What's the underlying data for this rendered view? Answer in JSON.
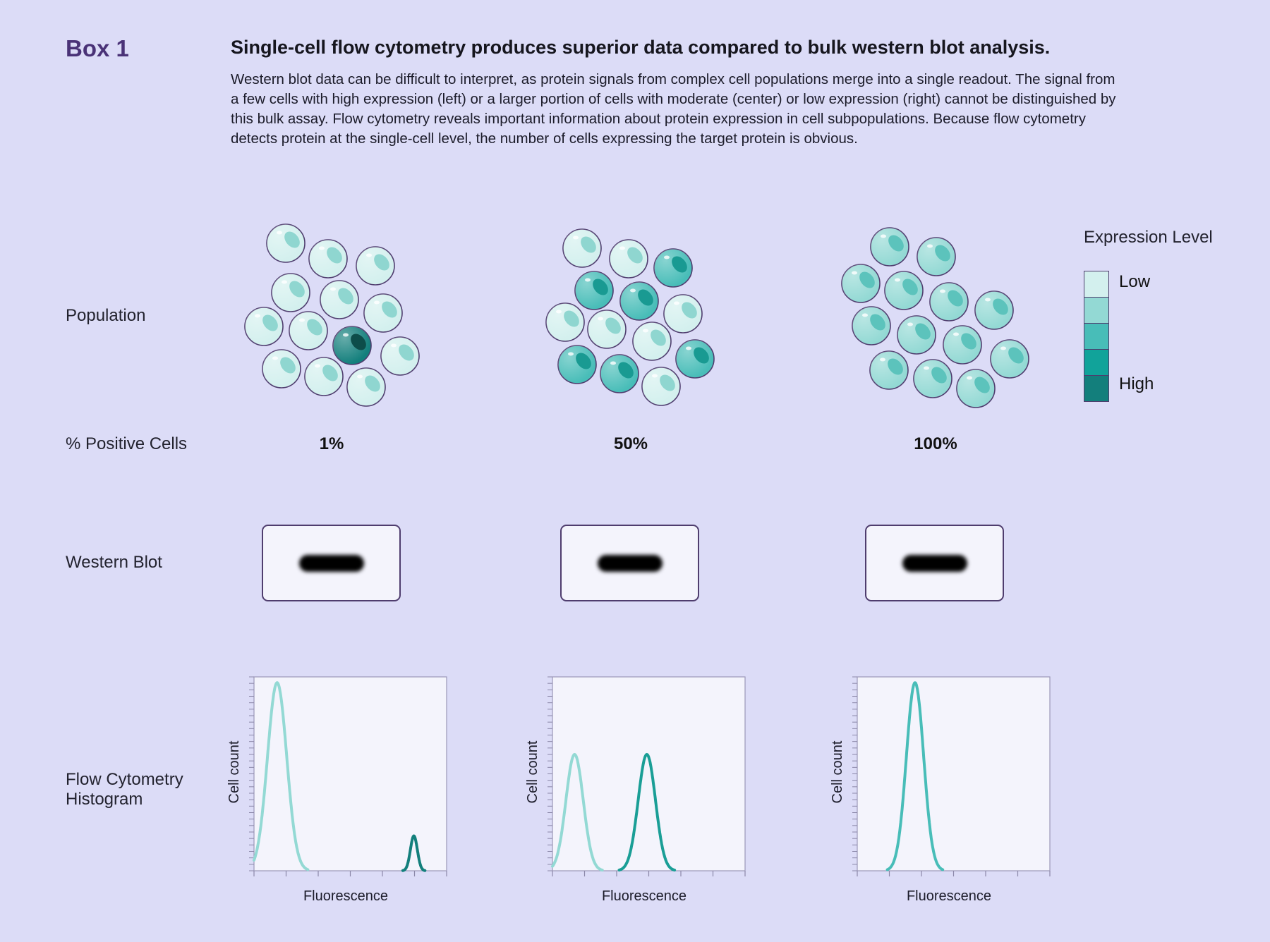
{
  "box_label": "Box 1",
  "headline": "Single-cell flow cytometry produces superior data compared to bulk western blot analysis.",
  "intro": "Western blot data can be difficult to interpret, as protein signals from complex cell populations merge into a single readout. The signal from a few cells with high expression (left) or a larger portion of cells with moderate (center) or low expression (right) cannot be distinguished by this bulk assay. Flow cytometry reveals important information about protein expression in cell subpopulations. Because flow cytometry detects protein at the single-cell level, the number of cells expressing the target protein is obvious.",
  "row_labels": {
    "population": "Population",
    "percent_positive": "% Positive Cells",
    "western_blot": "Western Blot",
    "flow_line1": "Flow Cytometry",
    "flow_line2": "Histogram"
  },
  "legend": {
    "title": "Expression Level",
    "low": "Low",
    "high": "High",
    "colors": [
      "#d3f0ee",
      "#93d9d4",
      "#48bdb8",
      "#11a39a",
      "#137f7c"
    ]
  },
  "panels": [
    {
      "percent": "1%"
    },
    {
      "percent": "50%"
    },
    {
      "percent": "100%"
    }
  ],
  "chart_data": [
    {
      "type": "line",
      "xlabel": "Fluorescence",
      "ylabel": "Cell count",
      "series": [
        {
          "color": "#93d9d4",
          "peak_x": 0.12,
          "peak_y": 0.97,
          "sigma": 0.05
        },
        {
          "color": "#137f7c",
          "peak_x": 0.83,
          "peak_y": 0.18,
          "sigma": 0.018
        }
      ]
    },
    {
      "type": "line",
      "xlabel": "Fluorescence",
      "ylabel": "Cell count",
      "series": [
        {
          "color": "#93d9d4",
          "peak_x": 0.115,
          "peak_y": 0.6,
          "sigma": 0.045
        },
        {
          "color": "#1a9e96",
          "peak_x": 0.49,
          "peak_y": 0.6,
          "sigma": 0.045
        }
      ]
    },
    {
      "type": "line",
      "xlabel": "Fluorescence",
      "ylabel": "Cell count",
      "series": [
        {
          "color": "#48bdb8",
          "peak_x": 0.3,
          "peak_y": 0.97,
          "sigma": 0.045
        }
      ]
    }
  ]
}
